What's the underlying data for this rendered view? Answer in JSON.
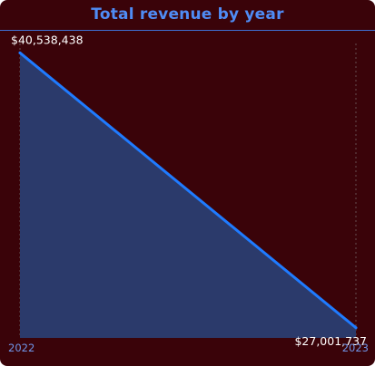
{
  "chart_data": {
    "type": "area",
    "title": "Total revenue by year",
    "xlabel": "",
    "ylabel": "",
    "categories": [
      "2022",
      "2023"
    ],
    "values": [
      40538438,
      27001737
    ],
    "data_labels": [
      "$40,538,438",
      "$27,001,737"
    ],
    "ylim": [
      26500000,
      41000000
    ],
    "grid": false,
    "legend": "none",
    "colors": {
      "background": "#3a0309",
      "title": "#4f8cf5",
      "line": "#1f7bff",
      "area": "#2b3a6b",
      "tick_label": "#6f94e6",
      "data_label": "#ffffff",
      "guide": "#8a8a8a"
    }
  }
}
